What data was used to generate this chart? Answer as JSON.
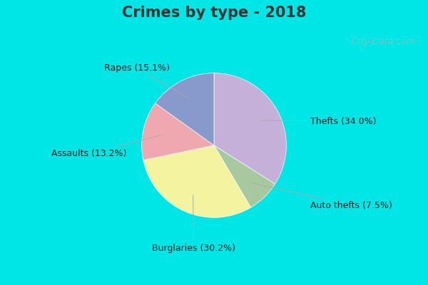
{
  "title": "Crimes by type - 2018",
  "slices": [
    {
      "label": "Thefts (34.0%)",
      "value": 34.0,
      "color": "#c4b0d8"
    },
    {
      "label": "Auto thefts (7.5%)",
      "value": 7.5,
      "color": "#a8c8a0"
    },
    {
      "label": "Burglaries (30.2%)",
      "value": 30.2,
      "color": "#f4f4a0"
    },
    {
      "label": "Assaults (13.2%)",
      "value": 13.2,
      "color": "#f0a8b0"
    },
    {
      "label": "Rapes (15.1%)",
      "value": 15.1,
      "color": "#8899cc"
    }
  ],
  "background_top": "#00e5e5",
  "background_main": "#c8e8d8",
  "title_fontsize": 15,
  "label_fontsize": 9,
  "watermark": "  City-Data.com",
  "title_color": "#333333"
}
